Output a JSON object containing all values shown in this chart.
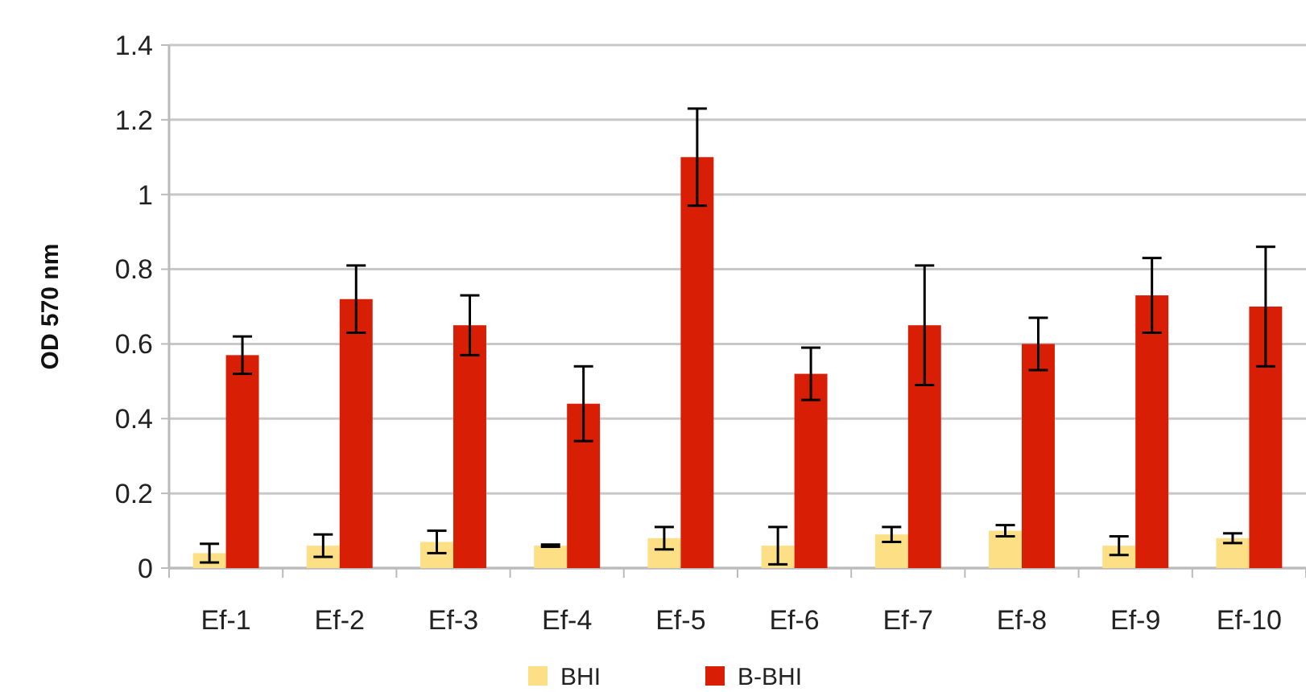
{
  "chart_data": {
    "type": "bar",
    "ylabel": "OD 570 nm",
    "categories": [
      "Ef-1",
      "Ef-2",
      "Ef-3",
      "Ef-4",
      "Ef-5",
      "Ef-6",
      "Ef-7",
      "Ef-8",
      "Ef-9",
      "Ef-10"
    ],
    "series": [
      {
        "name": "BHI",
        "color": "#fddf86",
        "values": [
          0.04,
          0.06,
          0.07,
          0.06,
          0.08,
          0.06,
          0.09,
          0.1,
          0.06,
          0.08
        ],
        "errors": [
          0.025,
          0.03,
          0.03,
          0.003,
          0.03,
          0.05,
          0.02,
          0.015,
          0.025,
          0.013
        ]
      },
      {
        "name": "B-BHI",
        "color": "#d81e05",
        "values": [
          0.57,
          0.72,
          0.65,
          0.44,
          1.1,
          0.52,
          0.65,
          0.6,
          0.73,
          0.7
        ],
        "errors": [
          0.05,
          0.09,
          0.08,
          0.1,
          0.13,
          0.07,
          0.16,
          0.07,
          0.1,
          0.16
        ]
      }
    ],
    "ylim": [
      0,
      1.4
    ],
    "yticks": [
      0,
      0.2,
      0.4,
      0.6,
      0.8,
      1,
      1.2,
      1.4
    ],
    "grid": "y",
    "legend": "bottom"
  }
}
